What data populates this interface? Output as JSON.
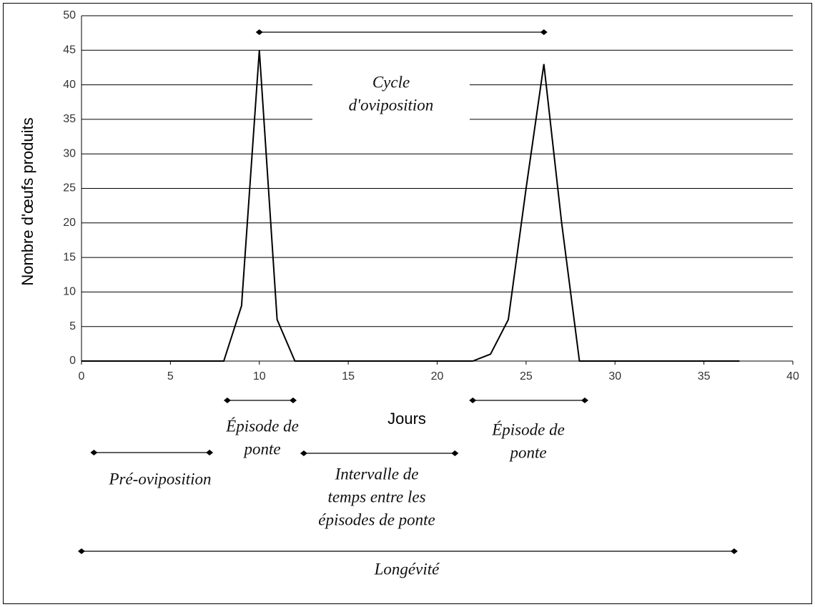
{
  "chart_data": {
    "type": "line",
    "xlabel": "Jours",
    "ylabel": "Nombre d'œufs produits",
    "x": [
      0,
      8,
      9,
      10,
      11,
      12,
      22,
      23,
      24,
      25,
      26,
      27,
      28,
      37
    ],
    "series": [
      {
        "color": "#000000",
        "values": [
          0,
          0,
          8,
          45,
          6,
          0,
          0,
          1,
          6,
          25,
          43,
          20,
          0,
          0
        ]
      }
    ],
    "xlim": [
      0,
      40
    ],
    "xticks": [
      0,
      5,
      10,
      15,
      20,
      25,
      30,
      35,
      40
    ],
    "ylim": [
      0,
      50
    ],
    "yticks": [
      0,
      5,
      10,
      15,
      20,
      25,
      30,
      35,
      40,
      45,
      50
    ],
    "grid": true,
    "annotations": [
      {
        "text": [
          "Cycle",
          "d'oviposition"
        ],
        "span": [
          10,
          26
        ]
      },
      {
        "text": [
          "Épisode de",
          "ponte"
        ],
        "span": [
          8.2,
          11.9
        ]
      },
      {
        "text": [
          "Épisode de",
          "ponte"
        ],
        "span": [
          22,
          28.3
        ]
      },
      {
        "text": [
          "Pré-oviposition"
        ],
        "span": [
          0.7,
          7.2
        ]
      },
      {
        "text": [
          "Intervalle de",
          "temps entre les",
          "épisodes de ponte"
        ],
        "span": [
          12.5,
          21
        ]
      },
      {
        "text": [
          "Longévité"
        ],
        "span": [
          0,
          36.7
        ]
      }
    ]
  }
}
